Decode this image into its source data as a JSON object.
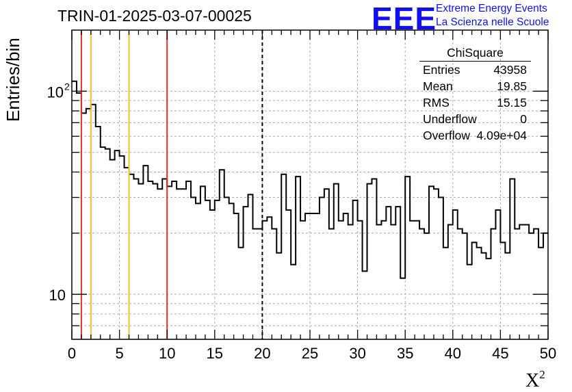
{
  "title": "TRIN-01-2025-03-07-00025",
  "logo": {
    "mark": "EEE",
    "line1": "Extreme Energy Events",
    "line2": "La Scienza nelle Scuole",
    "color": "#1010ee"
  },
  "stats": {
    "name": "ChiSquare",
    "rows": [
      {
        "key": "Entries",
        "value": "43958"
      },
      {
        "key": "Mean",
        "value": "19.85"
      },
      {
        "key": "RMS",
        "value": "15.15"
      },
      {
        "key": "Underflow",
        "value": "0"
      },
      {
        "key": "Overflow",
        "value": "4.09e+04"
      }
    ]
  },
  "chart_data": {
    "type": "histogram",
    "title": "TRIN-01-2025-03-07-00025",
    "xlabel": "X",
    "xlabel_sup": "2",
    "ylabel": "Entries/bin",
    "xlim": [
      0,
      50
    ],
    "ylim": [
      6,
      200
    ],
    "yscale": "log",
    "grid": true,
    "bin_width": 0.5,
    "values": [
      112,
      98,
      78,
      82,
      86,
      67,
      53,
      52,
      46,
      51,
      48,
      42,
      39,
      37,
      35,
      43,
      36,
      35,
      33,
      37,
      34,
      36,
      33,
      33,
      36,
      30,
      28,
      34,
      29,
      26,
      29,
      41,
      30,
      28,
      25,
      17,
      27,
      31,
      21,
      21,
      23,
      24,
      21,
      16,
      39,
      26,
      14,
      38,
      23,
      25,
      25,
      25,
      30,
      33,
      21,
      35,
      23,
      25,
      22,
      29,
      23,
      13,
      35,
      37,
      22,
      23,
      27,
      22,
      27,
      12,
      38,
      23,
      23,
      21,
      20,
      34,
      33,
      30,
      17,
      22,
      26,
      21,
      20,
      14,
      18,
      17,
      16,
      15,
      21,
      26,
      18,
      16,
      37,
      21,
      22,
      22,
      20,
      21,
      17,
      20
    ],
    "xticks": [
      "0",
      "5",
      "10",
      "15",
      "20",
      "25",
      "30",
      "35",
      "40",
      "45",
      "50"
    ],
    "yticks": [
      "10",
      "10"
    ],
    "ytick_exponents": [
      "",
      "2"
    ],
    "markers": [
      {
        "x": 1,
        "color": "#e8302a",
        "style": "solid"
      },
      {
        "x": 2,
        "color": "#f5c02a",
        "style": "solid"
      },
      {
        "x": 6,
        "color": "#f5c02a",
        "style": "solid"
      },
      {
        "x": 10,
        "color": "#e8302a",
        "style": "solid"
      },
      {
        "x": 20,
        "color": "#000000",
        "style": "dashed"
      }
    ]
  }
}
